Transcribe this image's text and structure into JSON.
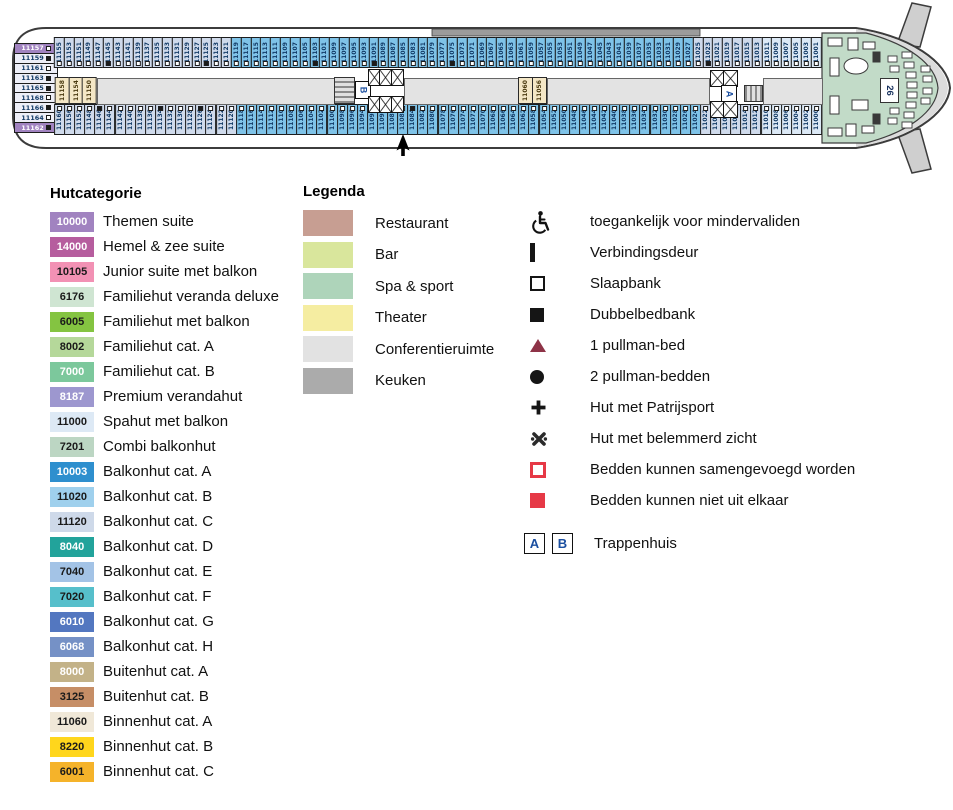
{
  "deck": {
    "spa_room_label": "26",
    "stairwells": {
      "a": "A",
      "b": "B"
    },
    "cabin_colors": {
      "balkonhut_b": "#7fc3e8",
      "balkonhut_c": "#cfdaeb",
      "spahut": "#dce9f6"
    },
    "side_cabins": [
      {
        "n": "11157",
        "suite": true,
        "marker": "light"
      },
      {
        "n": "11159",
        "suite": false,
        "marker": "dark"
      },
      {
        "n": "11161",
        "suite": false,
        "marker": "light"
      },
      {
        "n": "11163",
        "suite": false,
        "marker": "dark"
      },
      {
        "n": "11165",
        "suite": false,
        "marker": "dark"
      },
      {
        "n": "11168",
        "suite": false,
        "marker": "light"
      },
      {
        "n": "11166",
        "suite": false,
        "marker": "dark"
      },
      {
        "n": "11164",
        "suite": false,
        "marker": "light"
      },
      {
        "n": "11162",
        "suite": true,
        "marker": "dark"
      }
    ],
    "center_cabins_aft": [
      "11158",
      "11154",
      "11150"
    ],
    "center_cabins_mid": [
      "11060",
      "11056"
    ],
    "top_row_sections": [
      {
        "cat": "balkonhut_c",
        "cabins": [
          "11155",
          "11153",
          "11151",
          "11149",
          "11147",
          "11145",
          "11143",
          "11141",
          "11139",
          "11137",
          "11135",
          "11133",
          "11131",
          "11129",
          "11127",
          "11125",
          "11123",
          "11121"
        ]
      },
      {
        "cat": "balkonhut_b",
        "cabins": [
          "11119",
          "11117",
          "11115",
          "11113",
          "11111",
          "11109",
          "11107",
          "11105",
          "11103",
          "11101",
          "11099",
          "11097",
          "11095",
          "11093",
          "11091",
          "11089",
          "11087",
          "11085",
          "11083",
          "11081",
          "11079",
          "11077",
          "11075",
          "11073",
          "11071",
          "11069",
          "11067",
          "11065",
          "11063",
          "11061",
          "11059",
          "11057",
          "11055",
          "11053",
          "11051",
          "11049",
          "11047",
          "11045",
          "11043",
          "11041",
          "11039",
          "11037",
          "11035",
          "11033",
          "11031",
          "11029",
          "11027"
        ]
      },
      {
        "cat": "balkonhut_c",
        "cabins": [
          "11025",
          "11023",
          "11021",
          "11019",
          "11017",
          "11015",
          "11013"
        ]
      },
      {
        "cat": "spahut",
        "cabins": [
          "11011",
          "11009",
          "11007",
          "11005",
          "11003",
          "11001"
        ]
      }
    ],
    "bottom_row_sections": [
      {
        "cat": "balkonhut_c",
        "cabins": [
          "11160",
          "11156",
          "11152",
          "11148",
          "11146",
          "11144",
          "11142",
          "11140",
          "11138",
          "11136",
          "11134",
          "11132",
          "11130",
          "11128",
          "11126",
          "11124",
          "11122",
          "11120"
        ]
      },
      {
        "cat": "balkonhut_b",
        "cabins": [
          "11118",
          "11116",
          "11114",
          "11112",
          "11110",
          "11108",
          "11106",
          "11104",
          "11102",
          "11100",
          "11098",
          "11096",
          "11094",
          "11092",
          "11090",
          "11088",
          "11086",
          "11084",
          "11082",
          "11080",
          "11078",
          "11076",
          "11074",
          "11072",
          "11070",
          "11068",
          "11066",
          "11064",
          "11062",
          "11058",
          "11054",
          "11052",
          "11050",
          "11048",
          "11046",
          "11044",
          "11042",
          "11040",
          "11038",
          "11036",
          "11034",
          "11032",
          "11030",
          "11028",
          "11026",
          "11024"
        ]
      },
      {
        "cat": "balkonhut_c",
        "cabins": [
          "11022",
          "11020",
          "11018",
          "11016",
          "11014",
          "11012"
        ]
      },
      {
        "cat": "spahut",
        "cabins": [
          "11010",
          "11008",
          "11006",
          "11004",
          "11002",
          "11000"
        ]
      }
    ],
    "dark_marker_cabins": [
      "11145",
      "11125",
      "11103",
      "11091",
      "11075",
      "11023",
      "11146",
      "11134",
      "11126",
      "11084",
      "11018"
    ]
  },
  "hutcategorie": {
    "title": "Hutcategorie",
    "items": [
      {
        "code": "10000",
        "label": "Themen suite",
        "bg": "#a183c0",
        "fg": "#ffffff"
      },
      {
        "code": "14000",
        "label": "Hemel & zee suite",
        "bg": "#b65d9e",
        "fg": "#ffffff"
      },
      {
        "code": "10105",
        "label": "Junior suite met balkon",
        "bg": "#f291b4",
        "fg": "#1a1a1a"
      },
      {
        "code": "6176",
        "label": "Familiehut veranda deluxe",
        "bg": "#cfe5d2",
        "fg": "#1a1a1a"
      },
      {
        "code": "6005",
        "label": "Familiehut met balkon",
        "bg": "#84c441",
        "fg": "#1a1a1a"
      },
      {
        "code": "8002",
        "label": "Familiehut cat. A",
        "bg": "#b5d89a",
        "fg": "#1a1a1a"
      },
      {
        "code": "7000",
        "label": "Familiehut cat. B",
        "bg": "#7cc89c",
        "fg": "#ffffff"
      },
      {
        "code": "8187",
        "label": "Premium verandahut",
        "bg": "#9d97cf",
        "fg": "#ffffff"
      },
      {
        "code": "11000",
        "label": "Spahut met balkon",
        "bg": "#dde9f5",
        "fg": "#1a1a1a"
      },
      {
        "code": "7201",
        "label": "Combi balkonhut",
        "bg": "#bcd6c3",
        "fg": "#1a1a1a"
      },
      {
        "code": "10003",
        "label": "Balkonhut cat. A",
        "bg": "#2e8fce",
        "fg": "#ffffff"
      },
      {
        "code": "11020",
        "label": "Balkonhut cat. B",
        "bg": "#9fd0ed",
        "fg": "#1a1a1a"
      },
      {
        "code": "11120",
        "label": "Balkonhut cat. C",
        "bg": "#ced9e9",
        "fg": "#1a1a1a"
      },
      {
        "code": "8040",
        "label": "Balkonhut cat. D",
        "bg": "#22a39b",
        "fg": "#ffffff"
      },
      {
        "code": "7040",
        "label": "Balkonhut cat. E",
        "bg": "#a3c3e6",
        "fg": "#1a1a1a"
      },
      {
        "code": "7020",
        "label": "Balkonhut cat. F",
        "bg": "#56bfcb",
        "fg": "#1a1a1a"
      },
      {
        "code": "6010",
        "label": "Balkonhut cat. G",
        "bg": "#5377c0",
        "fg": "#ffffff"
      },
      {
        "code": "6068",
        "label": "Balkonhut cat. H",
        "bg": "#7591c6",
        "fg": "#ffffff"
      },
      {
        "code": "8000",
        "label": "Buitenhut cat. A",
        "bg": "#c3b288",
        "fg": "#ffffff"
      },
      {
        "code": "3125",
        "label": "Buitenhut cat. B",
        "bg": "#c68e66",
        "fg": "#1a1a1a"
      },
      {
        "code": "11060",
        "label": "Binnenhut cat. A",
        "bg": "#f0e8d8",
        "fg": "#1a1a1a"
      },
      {
        "code": "8220",
        "label": "Binnenhut cat. B",
        "bg": "#ffd61c",
        "fg": "#1a1a1a"
      },
      {
        "code": "6001",
        "label": "Binnenhut cat. C",
        "bg": "#f5b32a",
        "fg": "#1a1a1a"
      }
    ]
  },
  "legenda": {
    "title": "Legenda",
    "items": [
      {
        "label": "Restaurant",
        "color": "#c79e92"
      },
      {
        "label": "Bar",
        "color": "#d9e69c"
      },
      {
        "label": "Spa & sport",
        "color": "#aed4ba"
      },
      {
        "label": "Theater",
        "color": "#f5eda1"
      },
      {
        "label": "Conferentieruimte",
        "color": "#e2e2e2"
      },
      {
        "label": "Keuken",
        "color": "#ababab"
      }
    ]
  },
  "symbols": {
    "items": [
      {
        "icon": "wheelchair",
        "label": "toegankelijk voor mindervaliden"
      },
      {
        "icon": "door-bar",
        "label": "Verbindingsdeur"
      },
      {
        "icon": "square-outline",
        "label": "Slaapbank"
      },
      {
        "icon": "square-filled",
        "label": "Dubbelbedbank"
      },
      {
        "icon": "triangle",
        "label": "1 pullman-bed"
      },
      {
        "icon": "circle",
        "label": "2 pullman-bedden"
      },
      {
        "icon": "plus",
        "label": "Hut met Patrijsport"
      },
      {
        "icon": "obstructed-view",
        "label": "Hut met belemmerd zicht"
      },
      {
        "icon": "square-red-outline",
        "label": "Bedden kunnen samengevoegd worden"
      },
      {
        "icon": "square-red-filled",
        "label": "Bedden kunnen niet uit elkaar"
      }
    ],
    "trappenhuis": {
      "letters": [
        "A",
        "B"
      ],
      "label": "Trappenhuis"
    }
  }
}
